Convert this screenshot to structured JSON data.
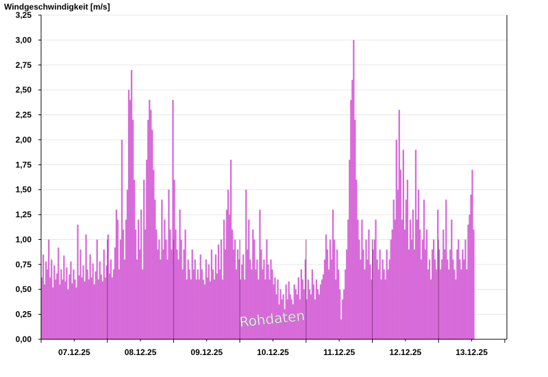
{
  "chart_data": {
    "type": "bar",
    "title": "Windgeschwindigkeit [m/s]",
    "ylabel": "Windgeschwindigkeit [m/s]",
    "xlabel": "",
    "ylim": [
      0,
      3.25
    ],
    "y_ticks": [
      "0,00",
      "0,25",
      "0,50",
      "0,75",
      "1,00",
      "1,25",
      "1,50",
      "1,75",
      "2,00",
      "2,25",
      "2,50",
      "2,75",
      "3,00",
      "3,25"
    ],
    "x_ticks": [
      "07.12.25",
      "08.12.25",
      "09.12.25",
      "10.12.25",
      "11.12.25",
      "12.12.25",
      "13.12.25"
    ],
    "grid": true,
    "annotation": "Rohdaten",
    "bar_color": "#d76bd9",
    "series": [
      {
        "values": [
          0.62,
          0.85,
          0.55,
          0.78,
          0.7,
          1.0,
          0.62,
          0.8,
          0.52,
          0.74,
          0.6,
          0.66,
          0.92,
          0.55,
          0.7,
          0.6,
          0.84,
          0.58,
          0.72,
          0.5,
          0.65,
          0.78,
          0.56,
          0.7,
          0.6,
          0.52,
          1.15,
          0.64,
          0.9,
          0.62,
          0.74,
          0.58,
          1.05,
          0.7,
          0.6,
          0.85,
          0.62,
          0.76,
          0.55,
          0.68,
          1.0,
          0.6,
          0.78,
          0.65,
          0.58,
          0.9,
          0.62,
          0.74,
          1.05,
          0.66,
          0.8,
          0.62,
          0.7,
          0.92,
          1.3,
          1.2,
          0.7,
          1.0,
          2.0,
          1.1,
          0.8,
          1.2,
          1.5,
          2.5,
          2.4,
          2.7,
          2.2,
          1.6,
          1.1,
          0.8,
          1.2,
          0.9,
          1.3,
          0.7,
          1.6,
          1.1,
          1.8,
          2.2,
          2.4,
          2.3,
          2.1,
          1.7,
          1.4,
          1.1,
          0.9,
          1.0,
          0.8,
          1.4,
          0.9,
          1.2,
          1.0,
          0.8,
          1.5,
          1.1,
          0.9,
          2.4,
          1.6,
          1.1,
          0.9,
          0.8,
          1.3,
          1.0,
          0.7,
          0.9,
          1.1,
          0.6,
          0.8,
          0.7,
          0.6,
          0.9,
          0.7,
          0.8,
          0.6,
          0.7,
          0.6,
          0.85,
          0.7,
          0.6,
          0.55,
          0.8,
          0.62,
          0.75,
          0.58,
          0.9,
          0.7,
          0.6,
          0.85,
          0.66,
          0.95,
          0.7,
          1.0,
          0.6,
          1.2,
          0.9,
          1.3,
          1.5,
          1.25,
          1.8,
          1.1,
          0.9,
          1.0,
          0.7,
          0.9,
          0.8,
          0.6,
          0.75,
          0.85,
          0.6,
          1.5,
          0.9,
          1.2,
          0.8,
          0.7,
          1.1,
          1.0,
          0.7,
          0.8,
          0.6,
          1.3,
          0.9,
          0.7,
          0.8,
          0.6,
          1.0,
          0.75,
          0.6,
          0.8,
          0.7,
          0.55,
          0.62,
          0.45,
          0.6,
          0.35,
          0.5,
          0.4,
          0.45,
          0.3,
          0.55,
          0.4,
          0.58,
          0.45,
          0.4,
          0.35,
          0.55,
          0.5,
          0.45,
          0.62,
          0.4,
          0.7,
          0.6,
          0.5,
          0.8,
          0.4,
          0.6,
          0.5,
          0.45,
          0.7,
          0.55,
          0.4,
          0.6,
          0.5,
          0.45,
          0.55,
          0.6,
          0.65,
          0.8,
          1.05,
          0.9,
          0.7,
          1.0,
          0.8,
          1.3,
          1.0,
          0.6,
          0.9,
          0.7,
          0.5,
          0.2,
          0.4,
          0.5,
          0.7,
          0.9,
          1.2,
          1.8,
          2.4,
          2.6,
          3.0,
          2.2,
          1.6,
          1.2,
          1.0,
          0.8,
          1.2,
          0.9,
          0.7,
          1.0,
          0.8,
          1.1,
          0.75,
          0.6,
          0.9,
          1.0,
          1.2,
          0.8,
          0.7,
          0.9,
          0.6,
          0.8,
          0.7,
          0.6,
          0.9,
          0.7,
          0.8,
          1.0,
          1.1,
          1.4,
          1.2,
          2.0,
          1.5,
          2.3,
          1.7,
          1.2,
          1.9,
          1.1,
          1.4,
          1.6,
          0.9,
          1.2,
          1.0,
          1.3,
          0.9,
          1.9,
          1.2,
          1.5,
          1.1,
          0.8,
          1.0,
          1.4,
          0.9,
          1.1,
          0.7,
          0.8,
          0.6,
          0.9,
          1.0,
          0.8,
          0.7,
          1.3,
          0.9,
          0.7,
          0.8,
          1.1,
          0.9,
          1.4,
          0.8,
          0.7,
          0.9,
          1.2,
          0.8,
          0.7,
          0.6,
          0.9,
          1.0,
          0.8,
          0.7,
          0.9,
          0.8,
          1.0,
          0.7,
          1.15,
          1.25,
          1.45,
          1.7,
          1.1
        ]
      }
    ]
  }
}
